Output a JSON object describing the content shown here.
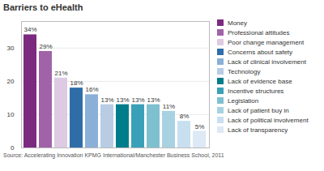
{
  "chart_data": {
    "type": "bar",
    "title": "Barriers to eHealth",
    "categories": [
      "Money",
      "Professional attitudes",
      "Poor change management",
      "Concerns about safety",
      "Lack of clinical involvement",
      "Technology",
      "Lack of evidence base",
      "Incentive structures",
      "Legislation",
      "Lack of patient buy in",
      "Lack of political involvement",
      "Lack of transparency"
    ],
    "values": [
      34,
      29,
      21,
      18,
      16,
      13,
      13,
      13,
      13,
      11,
      8,
      5
    ],
    "value_labels": [
      "34%",
      "29%",
      "21%",
      "18%",
      "16%",
      "13%",
      "13%",
      "13%",
      "13%",
      "11%",
      "8%",
      "5%"
    ],
    "colors": [
      "#7b2a7f",
      "#a063a8",
      "#dccbe3",
      "#2f6da8",
      "#8ab0d8",
      "#b8cce4",
      "#007d8a",
      "#3aa0b8",
      "#7fc0d0",
      "#a8d2e2",
      "#c8dff0",
      "#dde9f5"
    ],
    "ylim": [
      0,
      38
    ],
    "yticks": [
      0,
      10,
      20,
      30
    ],
    "grid": true,
    "data_labels": true,
    "tick_labels": "y",
    "legend": "right",
    "caption": "Source: Accelerating Innovation KPMG International/Manchester Business School, 2011"
  }
}
